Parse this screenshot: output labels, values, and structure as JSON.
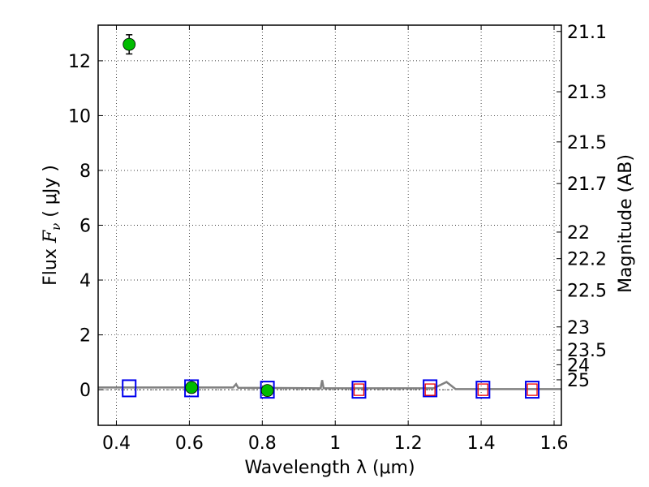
{
  "chart_data": {
    "type": "scatter",
    "xlabel": "Wavelength  λ (μm)",
    "ylabel_left": {
      "prefix": "Flux  ",
      "symbol": "F",
      "subscript": "ν",
      "suffix": "  ( μJy )"
    },
    "ylabel_right": "Magnitude (AB)",
    "xlim": [
      0.35,
      1.62
    ],
    "ylim": [
      -1.3,
      13.3
    ],
    "grid": true,
    "x_ticks": [
      {
        "value": 0.4,
        "label": "0.4"
      },
      {
        "value": 0.6,
        "label": "0.6"
      },
      {
        "value": 0.8,
        "label": "0.8"
      },
      {
        "value": 1.0,
        "label": "1"
      },
      {
        "value": 1.2,
        "label": "1.2"
      },
      {
        "value": 1.4,
        "label": "1.4"
      },
      {
        "value": 1.6,
        "label": "1.6"
      }
    ],
    "y_ticks": [
      {
        "value": 0,
        "label": "0"
      },
      {
        "value": 2,
        "label": "2"
      },
      {
        "value": 4,
        "label": "4"
      },
      {
        "value": 6,
        "label": "6"
      },
      {
        "value": 8,
        "label": "8"
      },
      {
        "value": 10,
        "label": "10"
      },
      {
        "value": 12,
        "label": "12"
      }
    ],
    "right_ticks": [
      {
        "flux": 13.07,
        "label": "21.1"
      },
      {
        "flux": 10.87,
        "label": "21.3"
      },
      {
        "flux": 9.04,
        "label": "21.5"
      },
      {
        "flux": 7.52,
        "label": "21.7"
      },
      {
        "flux": 5.75,
        "label": "22"
      },
      {
        "flux": 4.78,
        "label": "22.2"
      },
      {
        "flux": 3.63,
        "label": "22.5"
      },
      {
        "flux": 2.29,
        "label": "23"
      },
      {
        "flux": 1.45,
        "label": "23.5"
      },
      {
        "flux": 0.91,
        "label": "24"
      },
      {
        "flux": 0.36,
        "label": "25"
      }
    ],
    "series": [
      {
        "kind": "detected-flux",
        "color": "#00bb00",
        "points": [
          {
            "x": 0.435,
            "y": 12.6,
            "err": 0.35
          },
          {
            "x": 0.606,
            "y": 0.08,
            "err": 0.08
          },
          {
            "x": 0.814,
            "y": -0.03,
            "err": 0.08
          }
        ]
      },
      {
        "kind": "model-band",
        "color": "#0000ee",
        "points": [
          {
            "x": 0.435,
            "y": 0.05
          },
          {
            "x": 0.606,
            "y": 0.05
          },
          {
            "x": 0.814,
            "y": 0.0
          },
          {
            "x": 1.065,
            "y": 0.0
          },
          {
            "x": 1.26,
            "y": 0.05
          },
          {
            "x": 1.405,
            "y": 0.0
          },
          {
            "x": 1.54,
            "y": 0.0
          }
        ]
      },
      {
        "kind": "upper-limit",
        "color": "#ee0000",
        "points": [
          {
            "x": 1.065,
            "y": 0.0
          },
          {
            "x": 1.26,
            "y": 0.0
          },
          {
            "x": 1.405,
            "y": 0.0
          },
          {
            "x": 1.54,
            "y": 0.0
          }
        ]
      },
      {
        "kind": "model-spectrum",
        "color": "#808080",
        "points": [
          {
            "x": 0.35,
            "y": 0.08
          },
          {
            "x": 0.72,
            "y": 0.08
          },
          {
            "x": 0.728,
            "y": 0.2
          },
          {
            "x": 0.734,
            "y": 0.07
          },
          {
            "x": 0.96,
            "y": 0.05
          },
          {
            "x": 0.964,
            "y": 0.35
          },
          {
            "x": 0.968,
            "y": 0.05
          },
          {
            "x": 1.27,
            "y": 0.05
          },
          {
            "x": 1.305,
            "y": 0.28
          },
          {
            "x": 1.33,
            "y": 0.02
          },
          {
            "x": 1.62,
            "y": 0.02
          }
        ]
      }
    ]
  }
}
